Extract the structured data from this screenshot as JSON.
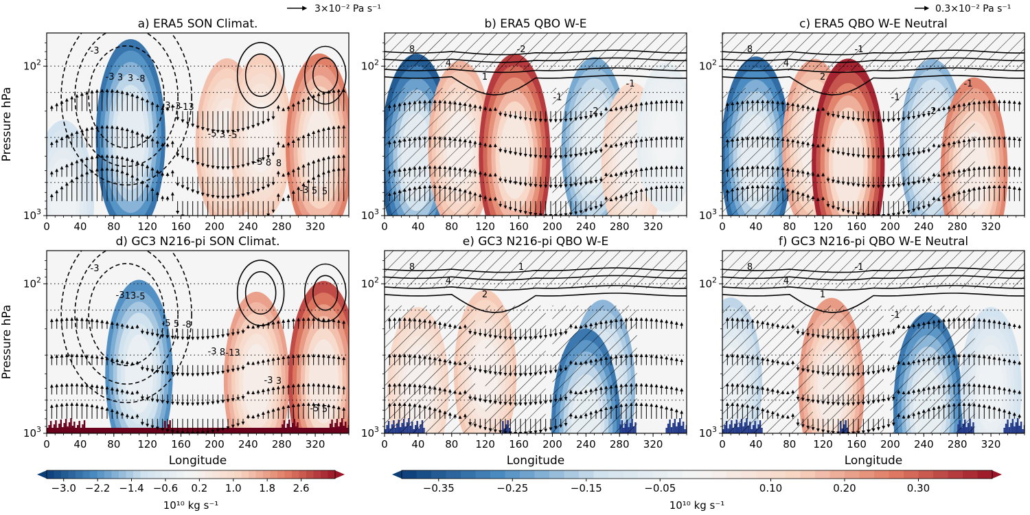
{
  "chart_data": [
    {
      "panel": "a",
      "title": "a) ERA5 SON Climat.",
      "type": "heatmap",
      "ylabel": "Pressure hPa",
      "xlabel": "",
      "x_ticks": [
        0,
        40,
        80,
        120,
        160,
        200,
        240,
        280,
        320
      ],
      "xlim": [
        0,
        360
      ],
      "y_scale": "log",
      "y_ticks": [
        "10^2",
        "10^3"
      ],
      "ylim": [
        1000,
        60
      ],
      "colorbar": "left",
      "filled_anomalies": [
        {
          "lon": 100,
          "p": 300,
          "value": -2.6
        },
        {
          "lon": 20,
          "p": 800,
          "value": -1.0
        },
        {
          "lon": 215,
          "p": 330,
          "value": 1.4
        },
        {
          "lon": 255,
          "p": 300,
          "value": 1.2
        },
        {
          "lon": 325,
          "p": 350,
          "value": 2.2
        }
      ],
      "contour_labels": [
        "-3",
        "-8",
        "-13",
        "-5",
        "8",
        "5",
        "3",
        "-3",
        "3",
        "8",
        "5",
        "3",
        "-3",
        "-5",
        "-3",
        "-3",
        "-3"
      ],
      "vectors": true,
      "hatching": false
    },
    {
      "panel": "b",
      "title": "b) ERA5 QBO W-E",
      "type": "heatmap",
      "ylabel": "",
      "x_ticks": [
        0,
        40,
        80,
        120,
        160,
        200,
        240,
        280,
        320
      ],
      "xlim": [
        0,
        360
      ],
      "y_scale": "log",
      "y_ticks": [
        "10^2",
        "10^3"
      ],
      "ylim": [
        1000,
        60
      ],
      "colorbar": "right",
      "filled_anomalies": [
        {
          "lon": 38,
          "p": 400,
          "value": -0.35
        },
        {
          "lon": 90,
          "p": 350,
          "value": 0.18
        },
        {
          "lon": 155,
          "p": 400,
          "value": 0.35
        },
        {
          "lon": 250,
          "p": 350,
          "value": -0.22
        },
        {
          "lon": 295,
          "p": 450,
          "value": 0.12
        },
        {
          "lon": 335,
          "p": 300,
          "value": -0.05
        }
      ],
      "contour_labels": [
        "8",
        "4",
        "1",
        "-2",
        "-1",
        "-2",
        "-1"
      ],
      "vectors": true,
      "hatching": true
    },
    {
      "panel": "c",
      "title": "c) ERA5 QBO W-E Neutral",
      "type": "heatmap",
      "ylabel": "",
      "x_ticks": [
        0,
        40,
        80,
        120,
        160,
        200,
        240,
        280,
        320
      ],
      "xlim": [
        0,
        360
      ],
      "y_scale": "log",
      "y_ticks": [
        "10^2",
        "10^3"
      ],
      "ylim": [
        1000,
        60
      ],
      "colorbar": "right",
      "filled_anomalies": [
        {
          "lon": 40,
          "p": 400,
          "value": -0.32
        },
        {
          "lon": 110,
          "p": 350,
          "value": 0.2
        },
        {
          "lon": 150,
          "p": 450,
          "value": 0.38
        },
        {
          "lon": 250,
          "p": 350,
          "value": -0.2
        },
        {
          "lon": 300,
          "p": 500,
          "value": 0.25
        }
      ],
      "contour_labels": [
        "8",
        "4",
        "2",
        "-1",
        "-1",
        "-2",
        "-1"
      ],
      "vectors": true,
      "hatching": true
    },
    {
      "panel": "d",
      "title": "d) GC3 N216-pi SON Climat.",
      "type": "heatmap",
      "ylabel": "Pressure hPa",
      "xlabel": "Longitude",
      "x_ticks": [
        0,
        40,
        80,
        120,
        160,
        200,
        240,
        280,
        320
      ],
      "xlim": [
        0,
        360
      ],
      "y_scale": "log",
      "y_ticks": [
        "10^2",
        "10^3"
      ],
      "ylim": [
        1000,
        60
      ],
      "colorbar": "left",
      "filled_anomalies": [
        {
          "lon": 110,
          "p": 400,
          "value": -2.2
        },
        {
          "lon": 250,
          "p": 450,
          "value": 1.8
        },
        {
          "lon": 330,
          "p": 450,
          "value": 2.8
        }
      ],
      "contour_labels": [
        "-3",
        "-5",
        "-8",
        "-13",
        "3",
        "5",
        "13",
        "5",
        "8",
        "-3",
        "-5",
        "-3",
        "-5",
        "-3"
      ],
      "vectors": true,
      "hatching": false
    },
    {
      "panel": "e",
      "title": "e) GC3 N216-pi QBO W-E",
      "type": "heatmap",
      "ylabel": "",
      "xlabel": "Longitude",
      "x_ticks": [
        0,
        40,
        80,
        120,
        160,
        200,
        240,
        280,
        320
      ],
      "xlim": [
        0,
        360
      ],
      "y_scale": "log",
      "y_ticks": [
        "10^2",
        "10^3"
      ],
      "ylim": [
        1000,
        60
      ],
      "colorbar": "right",
      "filled_anomalies": [
        {
          "lon": 40,
          "p": 500,
          "value": 0.12
        },
        {
          "lon": 120,
          "p": 400,
          "value": 0.15
        },
        {
          "lon": 260,
          "p": 500,
          "value": -0.2
        },
        {
          "lon": 240,
          "p": 900,
          "value": -0.3
        }
      ],
      "contour_labels": [
        "8",
        "4",
        "2",
        "1"
      ],
      "vectors": true,
      "hatching": true
    },
    {
      "panel": "f",
      "title": "f) GC3 N216-pi QBO W-E Neutral",
      "type": "heatmap",
      "ylabel": "",
      "xlabel": "Longitude",
      "x_ticks": [
        0,
        40,
        80,
        120,
        160,
        200,
        240,
        280,
        320
      ],
      "xlim": [
        0,
        360
      ],
      "y_scale": "log",
      "y_ticks": [
        "10^2",
        "10^3"
      ],
      "ylim": [
        1000,
        60
      ],
      "colorbar": "right",
      "filled_anomalies": [
        {
          "lon": 10,
          "p": 450,
          "value": -0.15
        },
        {
          "lon": 130,
          "p": 500,
          "value": 0.22
        },
        {
          "lon": 245,
          "p": 700,
          "value": -0.3
        },
        {
          "lon": 320,
          "p": 500,
          "value": -0.12
        }
      ],
      "contour_labels": [
        "8",
        "4",
        "1",
        "-1",
        "-1"
      ],
      "vectors": true,
      "hatching": true
    }
  ],
  "colorbars": {
    "left": {
      "ticks": [
        "−3.0",
        "−2.2",
        "−1.4",
        "−0.6",
        "0.2",
        "1.0",
        "1.8",
        "2.6"
      ],
      "range": [
        -3.4,
        3.4
      ],
      "units": "10^10 kg s^-1",
      "units_text": "10¹⁰ kg s⁻¹"
    },
    "right": {
      "ticks": [
        "−0.35",
        "−0.25",
        "−0.15",
        "−0.05",
        "0.10",
        "0.20",
        "0.30"
      ],
      "range": [
        -0.4,
        0.4
      ],
      "units": "10^10 kg s^-1",
      "units_text": "10¹⁰ kg s⁻¹"
    }
  },
  "reference_vectors": {
    "left": "3×10⁻² Pa s⁻¹",
    "right": "0.3×10⁻² Pa s⁻¹"
  },
  "colors": {
    "neg_dark": "#0b3d77",
    "neg_mid": "#4b8cc2",
    "neg_light": "#cfe1ee",
    "neutral": "#f5f5f5",
    "pos_light": "#f8d5c3",
    "pos_mid": "#e07b63",
    "pos_dark": "#9b1528",
    "orography": "#6a001c"
  }
}
